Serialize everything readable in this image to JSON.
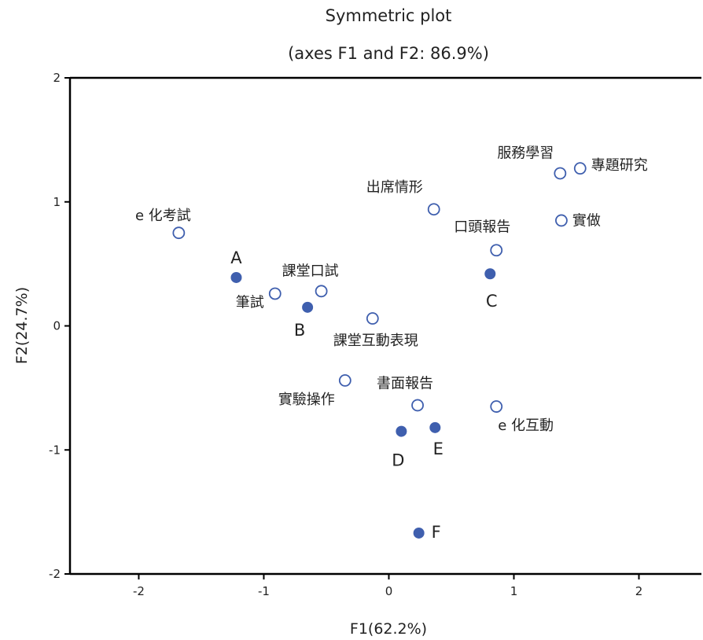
{
  "chart_data": {
    "type": "scatter",
    "title": "Symmetric plot",
    "subtitle": "(axes F1 and F2: 86.9%)",
    "xlabel": "F1(62.2%)",
    "ylabel": "F2(24.7%)",
    "xlim": [
      -2.55,
      2.5
    ],
    "ylim": [
      -2,
      2
    ],
    "xticks": [
      "-2",
      "-1",
      "0",
      "1",
      "2"
    ],
    "yticks": [
      "2",
      "1",
      "0",
      "-1",
      "-2"
    ],
    "grid": false,
    "colors": {
      "filled": "#3f5fae",
      "hollow": "#3f5fae",
      "frame": "#000000"
    },
    "series": [
      {
        "marker": "filled-circle",
        "points": [
          {
            "label": "A",
            "x": -1.22,
            "y": 0.39
          },
          {
            "label": "B",
            "x": -0.65,
            "y": 0.15
          },
          {
            "label": "C",
            "x": 0.81,
            "y": 0.42
          },
          {
            "label": "D",
            "x": 0.1,
            "y": -0.85
          },
          {
            "label": "E",
            "x": 0.37,
            "y": -0.82
          },
          {
            "label": "F",
            "x": 0.24,
            "y": -1.67
          }
        ]
      },
      {
        "marker": "hollow-circle",
        "points": [
          {
            "label": "e 化考試",
            "x": -1.68,
            "y": 0.75
          },
          {
            "label": "筆試",
            "x": -0.91,
            "y": 0.26
          },
          {
            "label": "課堂口試",
            "x": -0.54,
            "y": 0.28
          },
          {
            "label": "課堂互動表現",
            "x": -0.13,
            "y": 0.06
          },
          {
            "label": "出席情形",
            "x": 0.36,
            "y": 0.94
          },
          {
            "label": "口頭報告",
            "x": 0.86,
            "y": 0.61
          },
          {
            "label": "服務學習",
            "x": 1.37,
            "y": 1.23
          },
          {
            "label": "專題研究",
            "x": 1.53,
            "y": 1.27
          },
          {
            "label": "實做",
            "x": 1.38,
            "y": 0.85
          },
          {
            "label": "實驗操作",
            "x": -0.35,
            "y": -0.44
          },
          {
            "label": "書面報告",
            "x": 0.23,
            "y": -0.64
          },
          {
            "label": "e 化互動",
            "x": 0.86,
            "y": -0.65
          }
        ]
      }
    ]
  }
}
